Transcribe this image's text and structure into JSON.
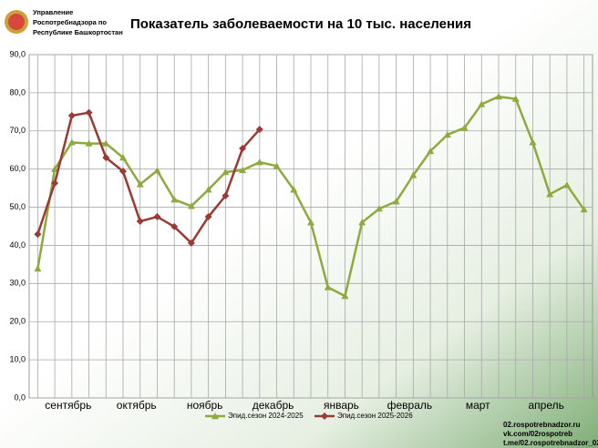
{
  "header": {
    "org": [
      "Управление",
      "Роспотребнадзора по",
      "Республике Башкортостан"
    ]
  },
  "footer": [
    "02.rospotrebnadzor.ru",
    "vk.com/02rospotreb",
    "t.me/02.rospotrebnadzor_02"
  ],
  "chart_data": {
    "type": "line",
    "title": "Показатель заболеваемости на 10 тыс. населения",
    "categories": [
      null,
      null,
      "сентябрь",
      null,
      null,
      null,
      "октябрь",
      null,
      null,
      null,
      "ноябрь",
      null,
      null,
      null,
      "декабрь",
      null,
      null,
      null,
      "январь",
      null,
      null,
      null,
      "февраль",
      null,
      null,
      null,
      "март",
      null,
      null,
      null,
      "апрель",
      null,
      null
    ],
    "series": [
      {
        "name": "Эпид.сезон 2024-2025",
        "color": "#8faa3c",
        "marker": "triangle",
        "values": [
          33.9,
          60,
          67,
          66.7,
          66.7,
          63,
          56,
          59.6,
          52,
          50.3,
          54.6,
          59.2,
          59.7,
          61.8,
          60.8,
          54.6,
          46,
          29,
          26.7,
          46,
          49.6,
          51.5,
          58.4,
          64.7,
          69,
          70.8,
          77,
          79,
          78.4,
          67,
          53.4,
          55.8,
          49.4
        ]
      },
      {
        "name": "Эпид.сезон 2025-2026",
        "color": "#9b3a34",
        "marker": "diamond",
        "values": [
          42.9,
          56.3,
          74,
          74.8,
          63,
          59.4,
          46.3,
          47.5,
          44.9,
          40.6,
          47.5,
          53,
          65.4,
          70.4,
          null,
          null,
          null,
          null,
          null,
          null,
          null,
          null,
          null,
          null,
          null,
          null,
          null,
          null,
          null,
          null,
          null,
          null,
          null
        ]
      }
    ],
    "ylim": [
      0,
      90
    ],
    "yticks": [
      {
        "value": 0,
        "label": "0,0"
      },
      {
        "value": 10,
        "label": "10,0"
      },
      {
        "value": 20,
        "label": "20,0"
      },
      {
        "value": 30,
        "label": "30,0"
      },
      {
        "value": 40,
        "label": "40,0"
      },
      {
        "value": 50,
        "label": "50,0"
      },
      {
        "value": 60,
        "label": "60,0"
      },
      {
        "value": 70,
        "label": "70,0"
      },
      {
        "value": 80,
        "label": "80,0"
      },
      {
        "value": 90,
        "label": "90,0"
      }
    ],
    "grid": true,
    "legend": "bottom"
  }
}
